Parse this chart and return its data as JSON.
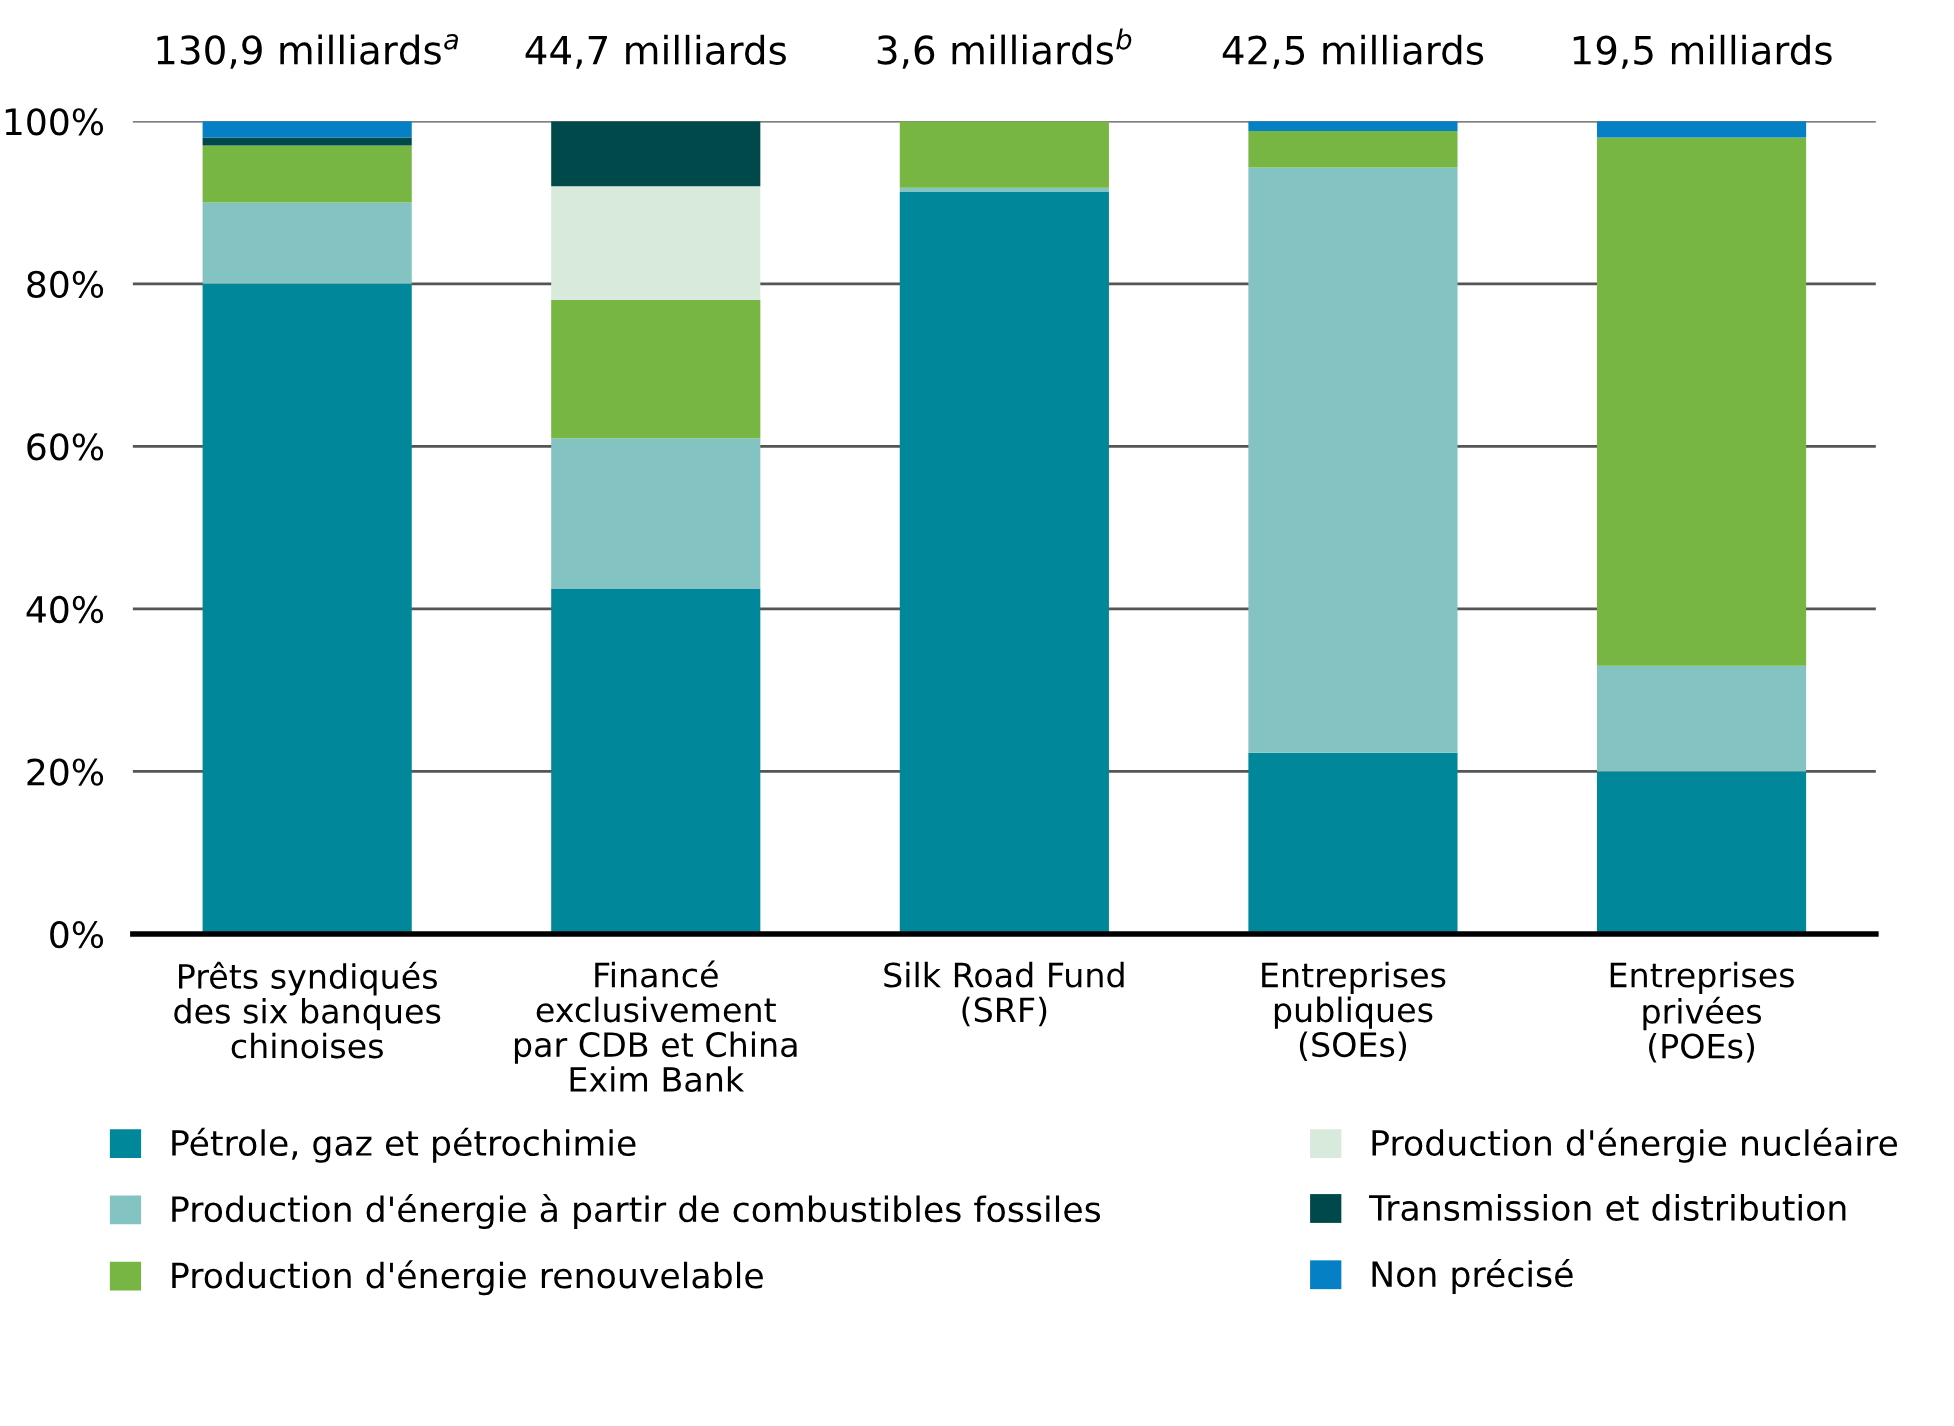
{
  "chart_data": {
    "type": "bar",
    "stacked": true,
    "categories": [
      "Prêts syndiqués\ndes six banques\nchinoises",
      "Financé\nexclusivement\npar CDB et China\nExim Bank",
      "Silk Road Fund\n(SRF)",
      "Entreprises\npubliques\n(SOEs)",
      "Entreprises\nprivées\n(POEs)"
    ],
    "series": [
      {
        "name": "Pétrole, gaz et pétrochimie",
        "color": "#00889a",
        "values": [
          80,
          42.5,
          91.3,
          22.3,
          20
        ]
      },
      {
        "name": "Production d'énergie à partir de combustibles fossiles",
        "color": "#83c3c2",
        "values": [
          10,
          18.5,
          0.5,
          72,
          13
        ]
      },
      {
        "name": "Production d'énergie renouvelable",
        "color": "#78b643",
        "values": [
          7,
          17,
          8.2,
          4.5,
          65
        ]
      },
      {
        "name": "Production d'énergie nucléaire",
        "color": "#d8eadc",
        "values": [
          0,
          14,
          0,
          0,
          0
        ]
      },
      {
        "name": "Transmission et distribution",
        "color": "#00494a",
        "values": [
          1,
          8,
          0,
          0,
          0
        ]
      },
      {
        "name": "Non précisé",
        "color": "#0580c4",
        "values": [
          2,
          0,
          0,
          1.2,
          2
        ]
      }
    ],
    "annotations": [
      "130,9 milliards$^{a}$",
      "44,7 milliards",
      "3,6 milliards$^{b}$",
      "42,5 milliards",
      "19,5 milliards"
    ],
    "ylim": [
      0,
      100
    ],
    "yticks": [
      {
        "value": 0,
        "label": "0%"
      },
      {
        "value": 20,
        "label": "20%"
      },
      {
        "value": 40,
        "label": "40%"
      },
      {
        "value": 60,
        "label": "60%"
      },
      {
        "value": 80,
        "label": "80%"
      },
      {
        "value": 100,
        "label": "100%"
      }
    ],
    "grid": "y",
    "legend": "bottom"
  }
}
